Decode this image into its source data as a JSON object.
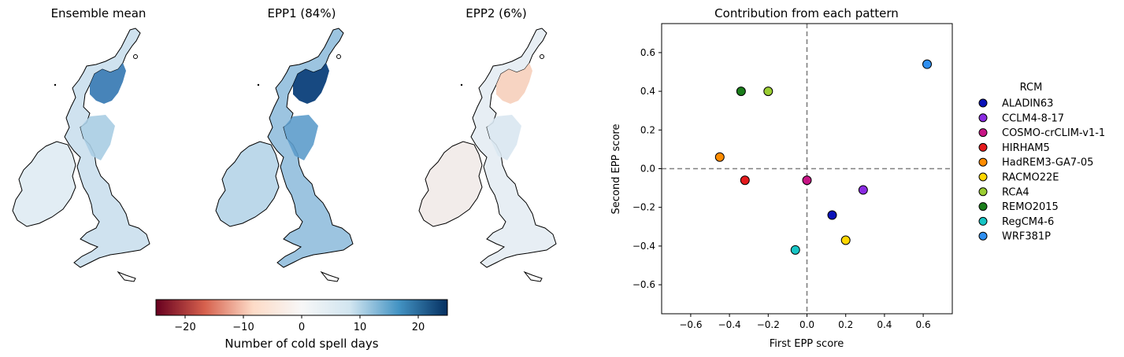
{
  "maps": [
    {
      "title": "Ensemble mean",
      "intensity": 0.55,
      "mode": "mean"
    },
    {
      "title": "EPP1 (84%)",
      "intensity": 1.0,
      "mode": "epp1"
    },
    {
      "title": "EPP2 (6%)",
      "intensity": 0.25,
      "mode": "epp2"
    }
  ],
  "colorbar": {
    "label": "Number of cold spell days",
    "ticks": [
      "−20",
      "−10",
      "0",
      "10",
      "20"
    ],
    "tick_values": [
      -20,
      -10,
      0,
      10,
      20
    ],
    "range": [
      -25,
      25
    ],
    "colormap": "RdBu",
    "colors": [
      "#67001f",
      "#d6604d",
      "#fddbc7",
      "#f7f7f7",
      "#d1e5f0",
      "#4393c3",
      "#053061"
    ]
  },
  "chart_data": {
    "type": "scatter",
    "title": "Contribution from each pattern",
    "xlabel": "First EPP score",
    "ylabel": "Second EPP score",
    "xlim": [
      -0.75,
      0.75
    ],
    "ylim": [
      -0.75,
      0.75
    ],
    "xticks": [
      -0.6,
      -0.4,
      -0.2,
      0.0,
      0.2,
      0.4,
      0.6
    ],
    "yticks": [
      -0.6,
      -0.4,
      -0.2,
      0.0,
      0.2,
      0.4,
      0.6
    ],
    "xtick_labels": [
      "−0.6",
      "−0.4",
      "−0.2",
      "0.0",
      "0.2",
      "0.4",
      "0.6"
    ],
    "ytick_labels": [
      "−0.6",
      "−0.4",
      "−0.2",
      "0.0",
      "0.2",
      "0.4",
      "0.6"
    ],
    "zero_lines": true,
    "grid": false,
    "legend_title": "RCM",
    "legend_position": "right",
    "series": [
      {
        "name": "ALADIN63",
        "color": "#0a12b8",
        "x": 0.13,
        "y": -0.24
      },
      {
        "name": "CCLM4-8-17",
        "color": "#8a2be2",
        "x": 0.29,
        "y": -0.11
      },
      {
        "name": "COSMO-crCLIM-v1-1",
        "color": "#c71585",
        "x": 0.0,
        "y": -0.06
      },
      {
        "name": "HIRHAM5",
        "color": "#e41a1c",
        "x": -0.32,
        "y": -0.06
      },
      {
        "name": "HadREM3-GA7-05",
        "color": "#ff8c00",
        "x": -0.45,
        "y": 0.06
      },
      {
        "name": "RACMO22E",
        "color": "#ffd700",
        "x": 0.2,
        "y": -0.37
      },
      {
        "name": "RCA4",
        "color": "#9acd32",
        "x": -0.2,
        "y": 0.4
      },
      {
        "name": "REMO2015",
        "color": "#1a7d1a",
        "x": -0.34,
        "y": 0.4
      },
      {
        "name": "RegCM4-6",
        "color": "#17c5c5",
        "x": -0.06,
        "y": -0.42
      },
      {
        "name": "WRF381P",
        "color": "#2f8ff0",
        "x": 0.62,
        "y": 0.54
      }
    ]
  }
}
